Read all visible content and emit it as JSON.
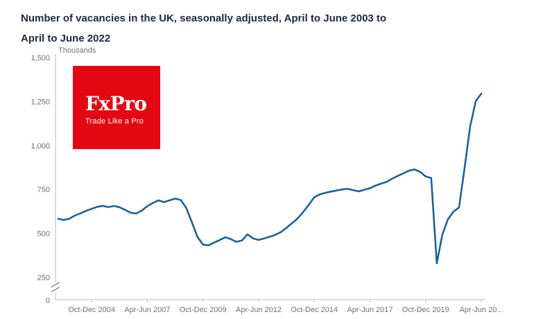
{
  "header": {
    "title_line1": "Number of vacancies in the UK, seasonally adjusted, April to June 2003 to",
    "title_line2": "April to June 2022"
  },
  "logo": {
    "brand": "FxPro",
    "tagline": "Trade Like a Pro",
    "bg_color": "#e30613",
    "text_color": "#ffffff"
  },
  "chart_data": {
    "type": "line",
    "title": "Number of vacancies in the UK, seasonally adjusted, April to June 2003 to April to June 2022",
    "unit_label": "Thousands",
    "xlabel": "",
    "ylabel": "Thousands",
    "x_start": "Apr-Jun 2003",
    "x_end": "Apr-Jun 2022",
    "x_frequency": "quarterly",
    "x_tick_indices": [
      6,
      16,
      26,
      36,
      46,
      56,
      66,
      76
    ],
    "x_tick_labels": [
      "Oct-Dec 2004",
      "Apr-Jun 2007",
      "Oct-Dec 2009",
      "Apr-Jun 2012",
      "Oct-Dec 2014",
      "Apr-Jun 2017",
      "Oct-Dec 2019",
      "Apr-Jun 20..."
    ],
    "y_ticks": [
      0,
      250,
      500,
      750,
      1000,
      1250,
      1500
    ],
    "y_tick_labels": [
      "0",
      "250",
      "500",
      "750",
      "1,000",
      "1,250",
      "1,500"
    ],
    "ylim": [
      0,
      1500
    ],
    "y_axis_break": true,
    "grid": false,
    "legend_position": "none",
    "line_color": "#206095",
    "axis_color": "#b8b8b8",
    "tick_text_color": "#707071",
    "series": [
      {
        "name": "Number of vacancies (thousands)",
        "values": [
          583,
          577,
          584,
          602,
          614,
          628,
          640,
          651,
          657,
          650,
          656,
          649,
          634,
          618,
          613,
          630,
          655,
          673,
          688,
          678,
          688,
          698,
          690,
          645,
          565,
          480,
          437,
          432,
          448,
          462,
          478,
          468,
          452,
          460,
          495,
          472,
          463,
          472,
          481,
          492,
          508,
          532,
          558,
          585,
          622,
          662,
          706,
          722,
          731,
          738,
          744,
          750,
          754,
          746,
          739,
          749,
          757,
          772,
          783,
          793,
          812,
          827,
          842,
          857,
          864,
          850,
          824,
          815,
          330,
          492,
          580,
          624,
          648,
          872,
          1108,
          1252,
          1295
        ]
      }
    ]
  }
}
